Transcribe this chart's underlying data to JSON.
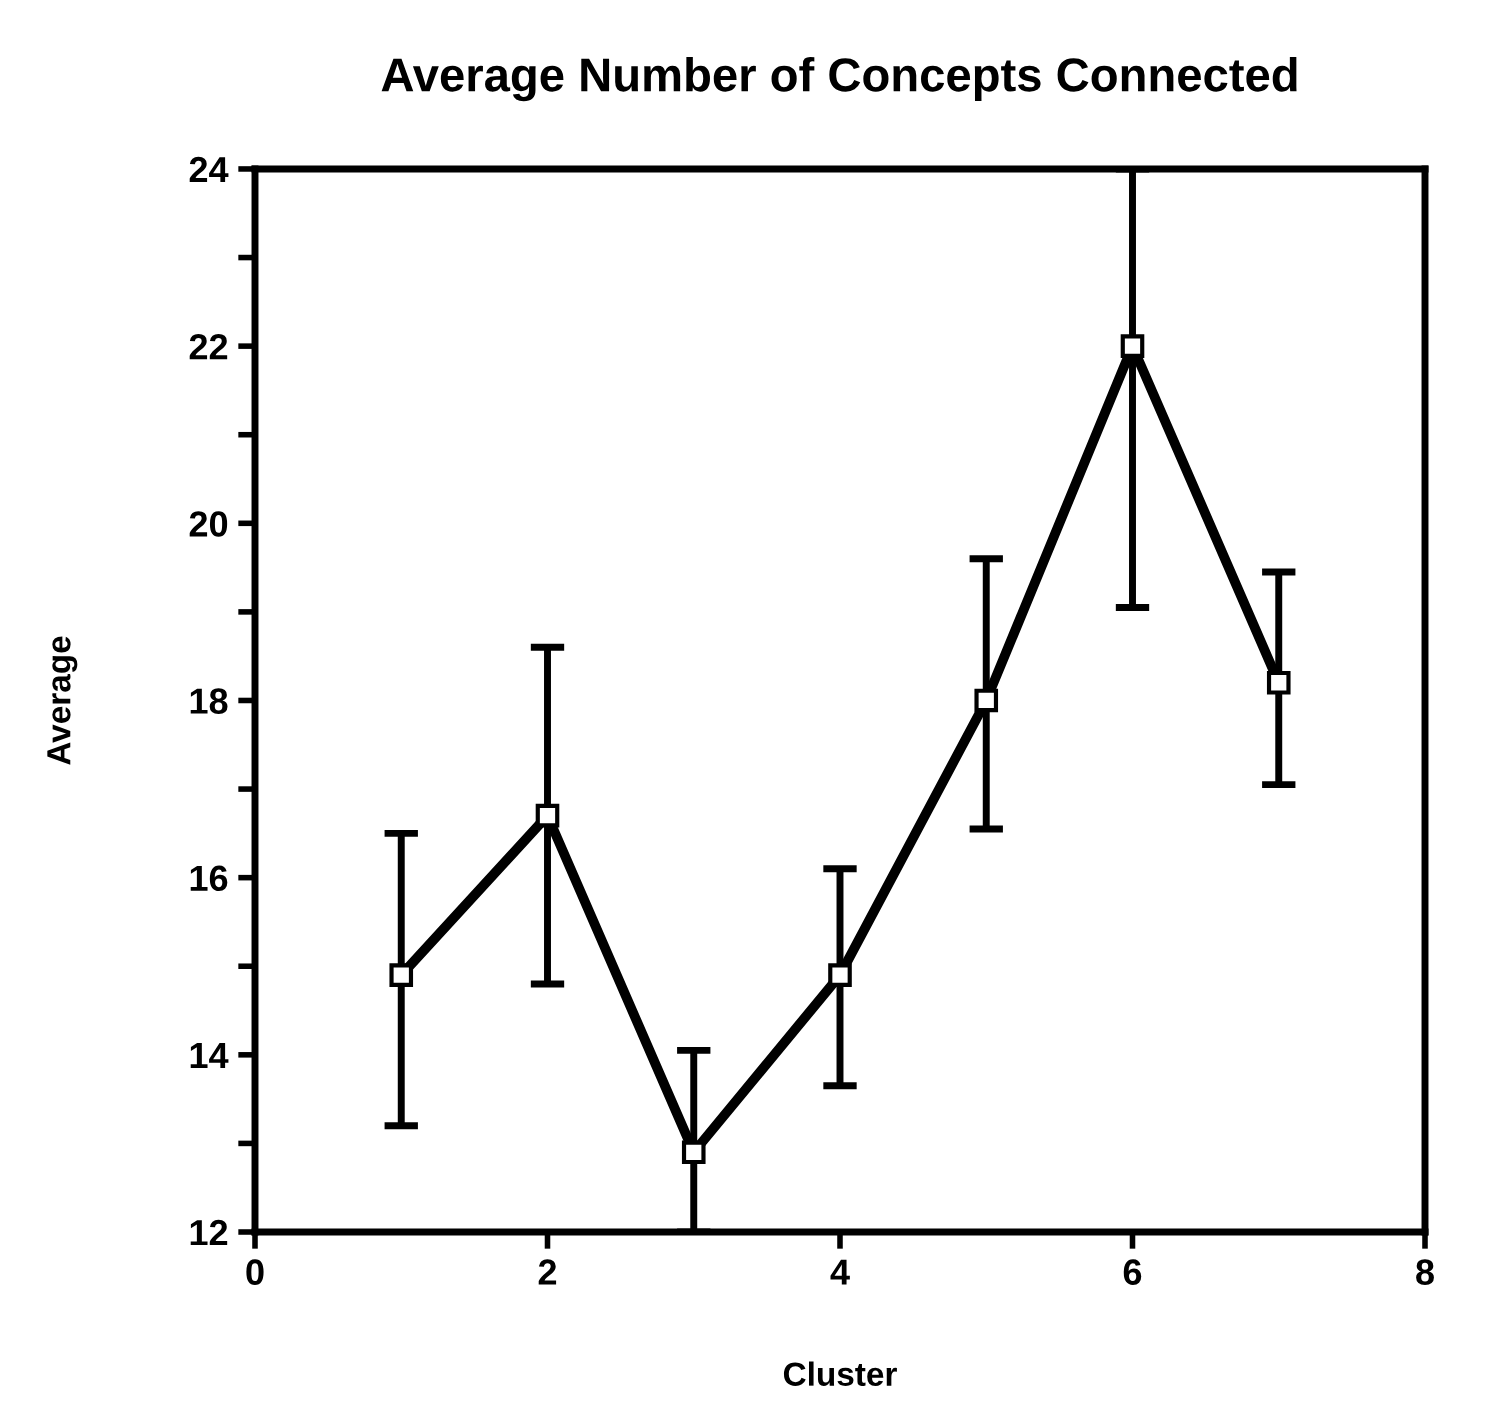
{
  "chart_data": {
    "type": "line",
    "title": "Average Number of Concepts Connected",
    "xlabel": "Cluster",
    "ylabel": "Average",
    "x": [
      1,
      2,
      3,
      4,
      5,
      6,
      7
    ],
    "series": [
      {
        "color": "#000000",
        "values": [
          14.9,
          16.7,
          12.9,
          14.9,
          18.0,
          22.0,
          18.2
        ],
        "errors": [
          [
            13.2,
            16.5
          ],
          [
            14.8,
            18.6
          ],
          [
            12,
            14.05
          ],
          [
            13.65,
            16.1
          ],
          [
            16.55,
            19.6
          ],
          [
            19.05,
            24
          ],
          [
            17.05,
            19.45
          ]
        ]
      }
    ],
    "xlim": [
      0,
      8
    ],
    "xticks": [
      0,
      2,
      4,
      6,
      8
    ],
    "ylim": [
      12,
      24
    ],
    "yticks": [
      12,
      {
        "value": 13,
        "label": null
      },
      14,
      {
        "value": 15,
        "label": null
      },
      16,
      {
        "value": 17,
        "label": null
      },
      18,
      {
        "value": 19,
        "label": null
      },
      20,
      {
        "value": 21,
        "label": null
      },
      22,
      {
        "value": 23,
        "label": null
      },
      24
    ],
    "grid": false,
    "legend": false,
    "marker": "square",
    "line_style": "solid"
  }
}
